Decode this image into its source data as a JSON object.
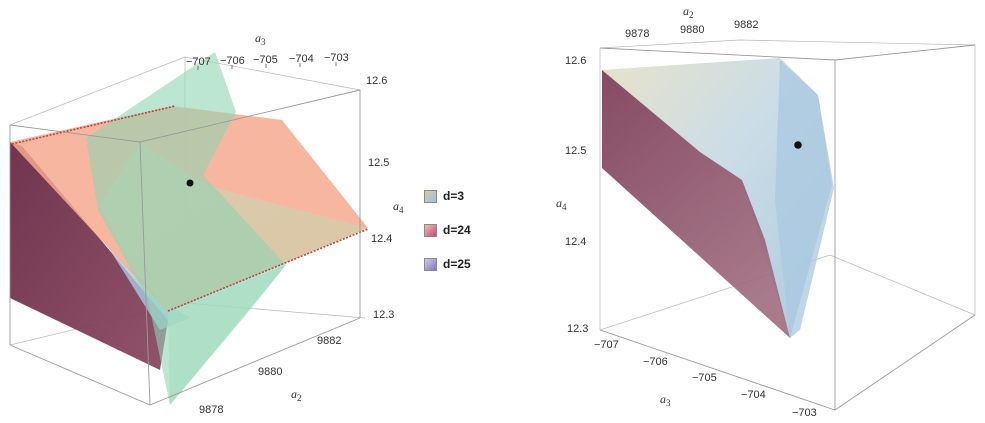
{
  "left_plot": {
    "a3_label": "a",
    "a3_sub": "3",
    "a3_ticks": [
      "−707",
      "−706",
      "−705",
      "−704",
      "−703"
    ],
    "a4_label": "a",
    "a4_sub": "4",
    "a4_ticks": [
      "12.6",
      "12.5",
      "12.4",
      "12.3"
    ],
    "a2_label": "a",
    "a2_sub": "2",
    "a2_ticks": [
      "9882",
      "9880",
      "9878"
    ]
  },
  "legend": {
    "items": [
      {
        "label": "d=3",
        "color_top": "#c9c39a",
        "color_bottom": "#9bbfd8"
      },
      {
        "label": "d=24",
        "color_top": "#f0b7a3",
        "color_bottom": "#c24a7c"
      },
      {
        "label": "d=25",
        "color_top": "#cdbfd8",
        "color_bottom": "#7b79c0"
      }
    ]
  },
  "right_plot": {
    "a2_label": "a",
    "a2_sub": "2",
    "a2_ticks": [
      "9878",
      "9880",
      "9882"
    ],
    "a4_label": "a",
    "a4_sub": "4",
    "a4_ticks": [
      "12.6",
      "12.5",
      "12.4",
      "12.3"
    ],
    "a3_label": "a",
    "a3_sub": "3",
    "a3_ticks": [
      "−707",
      "−706",
      "−705",
      "−704",
      "−703"
    ]
  },
  "colors": {
    "green_plane": "#8fd3b4",
    "salmon_plane": "#f6a98e",
    "beige_region": "#d8cfa8",
    "maroon_face": "#6e2c47",
    "blue_region": "#a9cbe0"
  }
}
